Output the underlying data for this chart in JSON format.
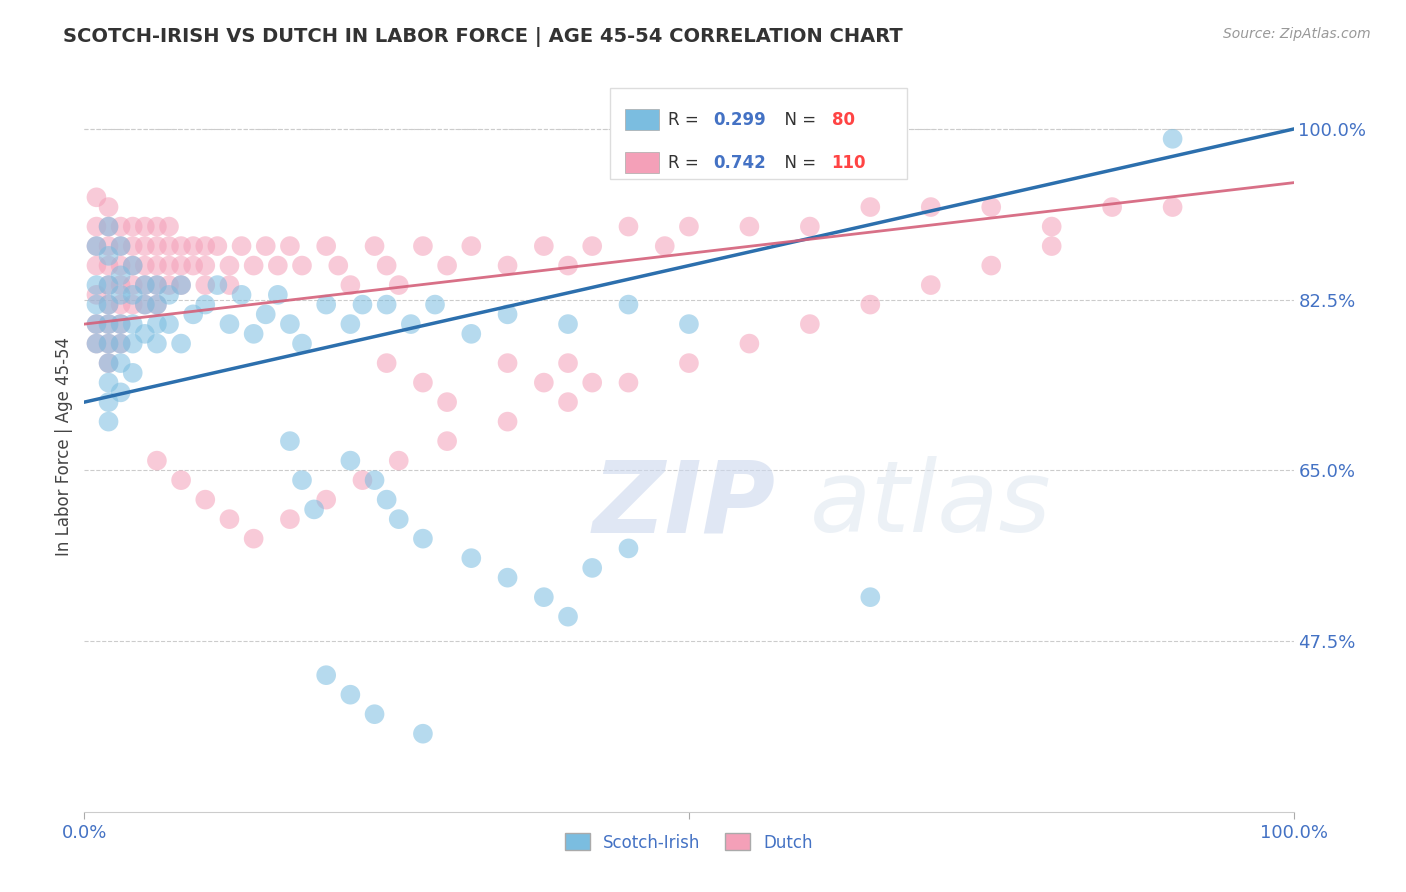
{
  "title": "SCOTCH-IRISH VS DUTCH IN LABOR FORCE | AGE 45-54 CORRELATION CHART",
  "source_text": "Source: ZipAtlas.com",
  "ylabel": "In Labor Force | Age 45-54",
  "xlim": [
    0.0,
    1.0
  ],
  "ylim": [
    0.3,
    1.05
  ],
  "yticks": [
    0.475,
    0.65,
    0.825,
    1.0
  ],
  "ytick_labels": [
    "47.5%",
    "65.0%",
    "82.5%",
    "100.0%"
  ],
  "scotch_irish_R": 0.299,
  "scotch_irish_N": 80,
  "dutch_R": 0.742,
  "dutch_N": 110,
  "scotch_irish_color": "#7bbde0",
  "dutch_color": "#f4a0b8",
  "scotch_irish_line_color": "#2c6fad",
  "dutch_line_color": "#d4607a",
  "watermark_zip": "ZIP",
  "watermark_atlas": "atlas",
  "background_color": "#ffffff",
  "grid_color": "#cccccc",
  "title_color": "#333333",
  "ylabel_color": "#444444",
  "tick_label_color": "#4472c4",
  "legend_R_color": "#4472c4",
  "legend_N_color": "#ff4444",
  "scotch_irish_x": [
    0.01,
    0.01,
    0.01,
    0.01,
    0.01,
    0.02,
    0.02,
    0.02,
    0.02,
    0.02,
    0.02,
    0.02,
    0.02,
    0.02,
    0.02,
    0.03,
    0.03,
    0.03,
    0.03,
    0.03,
    0.03,
    0.03,
    0.04,
    0.04,
    0.04,
    0.04,
    0.04,
    0.05,
    0.05,
    0.05,
    0.06,
    0.06,
    0.06,
    0.06,
    0.07,
    0.07,
    0.08,
    0.08,
    0.09,
    0.1,
    0.11,
    0.12,
    0.13,
    0.14,
    0.15,
    0.16,
    0.17,
    0.18,
    0.2,
    0.22,
    0.23,
    0.25,
    0.27,
    0.29,
    0.32,
    0.35,
    0.4,
    0.45,
    0.5,
    0.65,
    0.9,
    0.17,
    0.18,
    0.19,
    0.22,
    0.24,
    0.25,
    0.26,
    0.28,
    0.32,
    0.35,
    0.38,
    0.4,
    0.42,
    0.45,
    0.65,
    0.2,
    0.22,
    0.24,
    0.28
  ],
  "scotch_irish_y": [
    0.88,
    0.84,
    0.82,
    0.8,
    0.78,
    0.9,
    0.87,
    0.84,
    0.82,
    0.8,
    0.78,
    0.76,
    0.74,
    0.72,
    0.7,
    0.88,
    0.85,
    0.83,
    0.8,
    0.78,
    0.76,
    0.73,
    0.86,
    0.83,
    0.8,
    0.78,
    0.75,
    0.84,
    0.82,
    0.79,
    0.84,
    0.82,
    0.8,
    0.78,
    0.83,
    0.8,
    0.84,
    0.78,
    0.81,
    0.82,
    0.84,
    0.8,
    0.83,
    0.79,
    0.81,
    0.83,
    0.8,
    0.78,
    0.82,
    0.8,
    0.82,
    0.82,
    0.8,
    0.82,
    0.79,
    0.81,
    0.8,
    0.82,
    0.8,
    0.99,
    0.99,
    0.68,
    0.64,
    0.61,
    0.66,
    0.64,
    0.62,
    0.6,
    0.58,
    0.56,
    0.54,
    0.52,
    0.5,
    0.55,
    0.57,
    0.52,
    0.44,
    0.42,
    0.4,
    0.38
  ],
  "dutch_x": [
    0.01,
    0.01,
    0.01,
    0.01,
    0.01,
    0.01,
    0.01,
    0.02,
    0.02,
    0.02,
    0.02,
    0.02,
    0.02,
    0.02,
    0.02,
    0.02,
    0.03,
    0.03,
    0.03,
    0.03,
    0.03,
    0.03,
    0.03,
    0.04,
    0.04,
    0.04,
    0.04,
    0.04,
    0.05,
    0.05,
    0.05,
    0.05,
    0.05,
    0.06,
    0.06,
    0.06,
    0.06,
    0.06,
    0.07,
    0.07,
    0.07,
    0.07,
    0.08,
    0.08,
    0.08,
    0.09,
    0.09,
    0.1,
    0.1,
    0.1,
    0.11,
    0.12,
    0.12,
    0.13,
    0.14,
    0.15,
    0.16,
    0.17,
    0.18,
    0.2,
    0.21,
    0.22,
    0.24,
    0.25,
    0.26,
    0.28,
    0.3,
    0.32,
    0.35,
    0.38,
    0.4,
    0.42,
    0.45,
    0.48,
    0.5,
    0.55,
    0.6,
    0.65,
    0.7,
    0.75,
    0.8,
    0.85,
    0.9,
    0.25,
    0.28,
    0.3,
    0.35,
    0.38,
    0.4,
    0.42,
    0.06,
    0.08,
    0.1,
    0.12,
    0.14,
    0.17,
    0.2,
    0.23,
    0.26,
    0.3,
    0.35,
    0.4,
    0.45,
    0.5,
    0.55,
    0.6,
    0.65,
    0.7,
    0.75,
    0.8
  ],
  "dutch_y": [
    0.93,
    0.9,
    0.88,
    0.86,
    0.83,
    0.8,
    0.78,
    0.92,
    0.9,
    0.88,
    0.86,
    0.84,
    0.82,
    0.8,
    0.78,
    0.76,
    0.9,
    0.88,
    0.86,
    0.84,
    0.82,
    0.8,
    0.78,
    0.9,
    0.88,
    0.86,
    0.84,
    0.82,
    0.9,
    0.88,
    0.86,
    0.84,
    0.82,
    0.9,
    0.88,
    0.86,
    0.84,
    0.82,
    0.9,
    0.88,
    0.86,
    0.84,
    0.88,
    0.86,
    0.84,
    0.88,
    0.86,
    0.88,
    0.86,
    0.84,
    0.88,
    0.86,
    0.84,
    0.88,
    0.86,
    0.88,
    0.86,
    0.88,
    0.86,
    0.88,
    0.86,
    0.84,
    0.88,
    0.86,
    0.84,
    0.88,
    0.86,
    0.88,
    0.86,
    0.88,
    0.86,
    0.88,
    0.9,
    0.88,
    0.9,
    0.9,
    0.9,
    0.92,
    0.92,
    0.92,
    0.9,
    0.92,
    0.92,
    0.76,
    0.74,
    0.72,
    0.76,
    0.74,
    0.76,
    0.74,
    0.66,
    0.64,
    0.62,
    0.6,
    0.58,
    0.6,
    0.62,
    0.64,
    0.66,
    0.68,
    0.7,
    0.72,
    0.74,
    0.76,
    0.78,
    0.8,
    0.82,
    0.84,
    0.86,
    0.88
  ]
}
